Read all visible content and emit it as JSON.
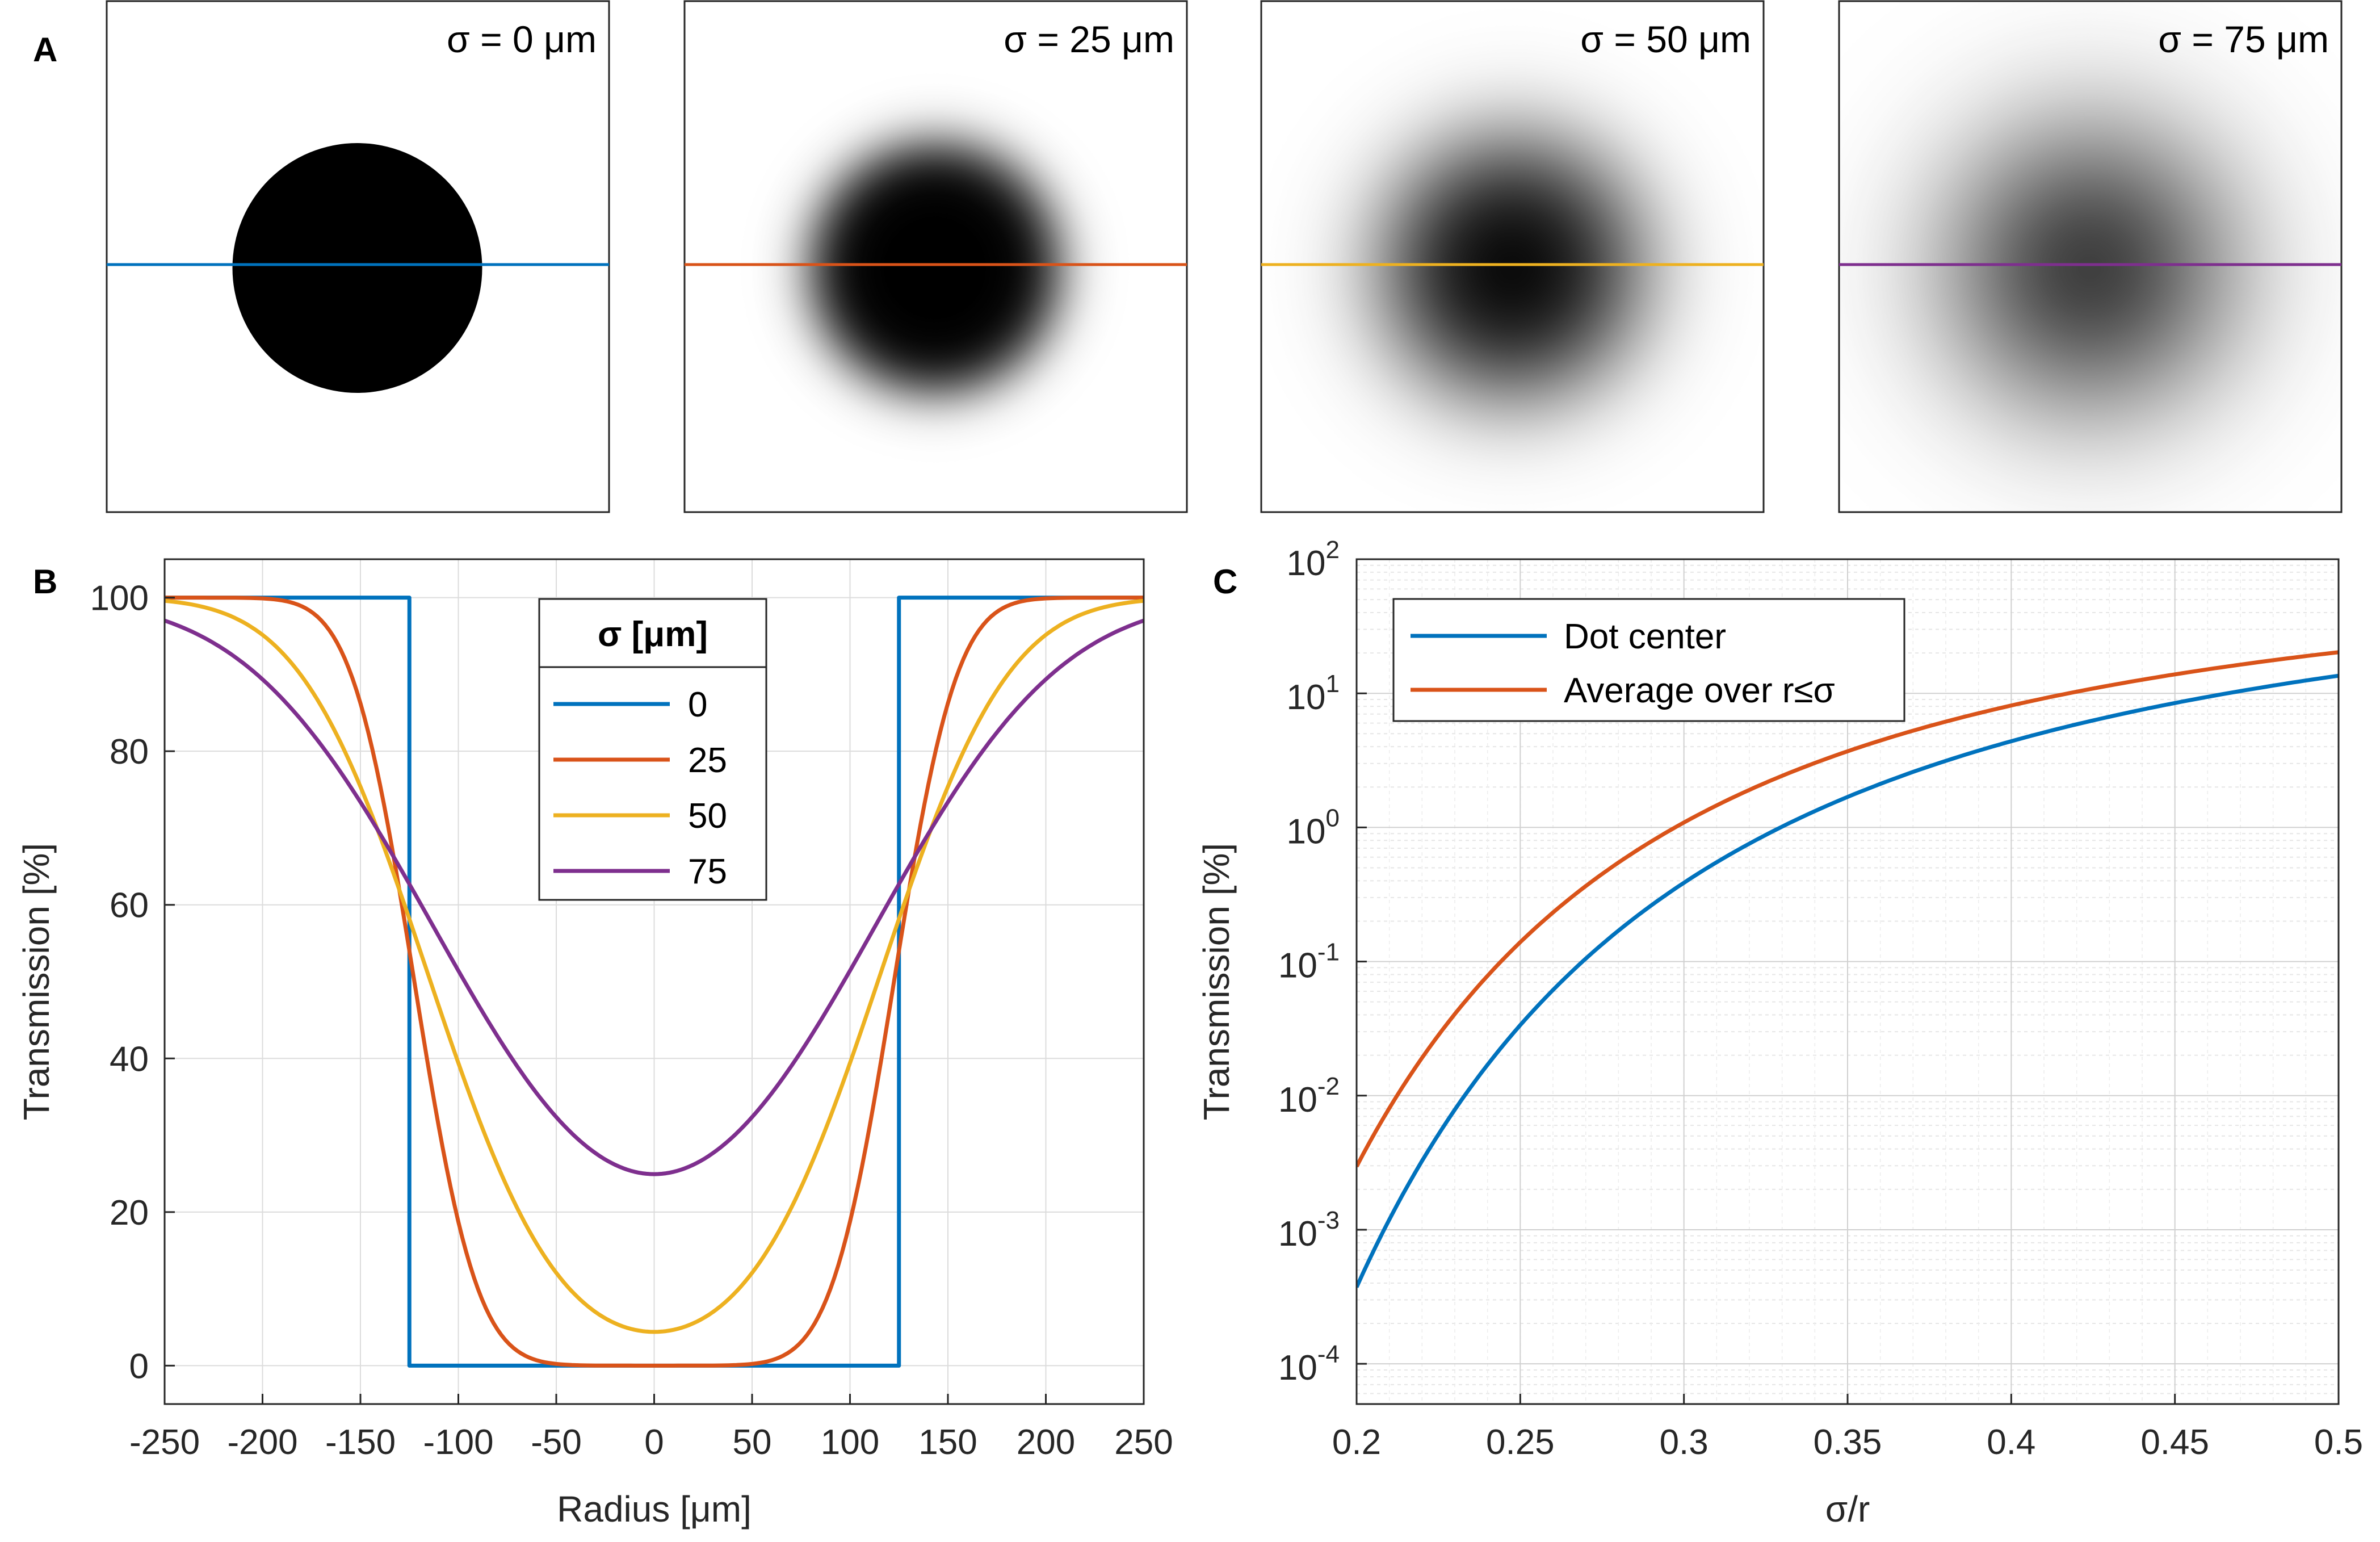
{
  "chart_data": [
    {
      "panel": "A",
      "type": "image-row",
      "images": [
        {
          "label": "σ = 0 μm",
          "sigma": 0,
          "line_color": "#0072BD"
        },
        {
          "label": "σ = 25 μm",
          "sigma": 25,
          "line_color": "#D95319"
        },
        {
          "label": "σ = 50 μm",
          "sigma": 50,
          "line_color": "#EDB120"
        },
        {
          "label": "σ = 75 μm",
          "sigma": 75,
          "line_color": "#7E2F8E"
        }
      ]
    },
    {
      "panel": "B",
      "type": "line",
      "xlabel": "Radius [μm]",
      "ylabel": "Transmission [%]",
      "xlim": [
        -250,
        250
      ],
      "ylim": [
        -5,
        105
      ],
      "xticks": [
        "-250",
        "-200",
        "-150",
        "-100",
        "-50",
        "0",
        "50",
        "100",
        "150",
        "200",
        "250"
      ],
      "yticks": [
        "0",
        "20",
        "40",
        "60",
        "80",
        "100"
      ],
      "grid": true,
      "dot_radius": 125,
      "legend_title": "σ [μm]",
      "legend_position": "top-center",
      "series": [
        {
          "name": "0",
          "sigma": 0,
          "color": "#0072BD"
        },
        {
          "name": "25",
          "sigma": 25,
          "color": "#D95319"
        },
        {
          "name": "50",
          "sigma": 50,
          "color": "#EDB120"
        },
        {
          "name": "75",
          "sigma": 75,
          "color": "#7E2F8E"
        }
      ]
    },
    {
      "panel": "C",
      "type": "line",
      "xlabel": "σ/r",
      "ylabel": "Transmission [%]",
      "xlim": [
        0.2,
        0.5
      ],
      "ylim_log10": [
        -4.3,
        2
      ],
      "yscale": "log",
      "xticks": [
        "0.2",
        "0.25",
        "0.3",
        "0.35",
        "0.4",
        "0.45",
        "0.5"
      ],
      "yticks": [
        {
          "base": "10",
          "exp": "-4"
        },
        {
          "base": "10",
          "exp": "-3"
        },
        {
          "base": "10",
          "exp": "-2"
        },
        {
          "base": "10",
          "exp": "-1"
        },
        {
          "base": "10",
          "exp": "0"
        },
        {
          "base": "10",
          "exp": "1"
        },
        {
          "base": "10",
          "exp": "2"
        }
      ],
      "grid": true,
      "legend_position": "top-left",
      "series": [
        {
          "name": "Dot center",
          "color": "#0072BD",
          "kind": "center"
        },
        {
          "name": "Average over r≤σ",
          "color": "#D95319",
          "kind": "average"
        }
      ]
    }
  ],
  "panel_letters": [
    "A",
    "B",
    "C"
  ]
}
